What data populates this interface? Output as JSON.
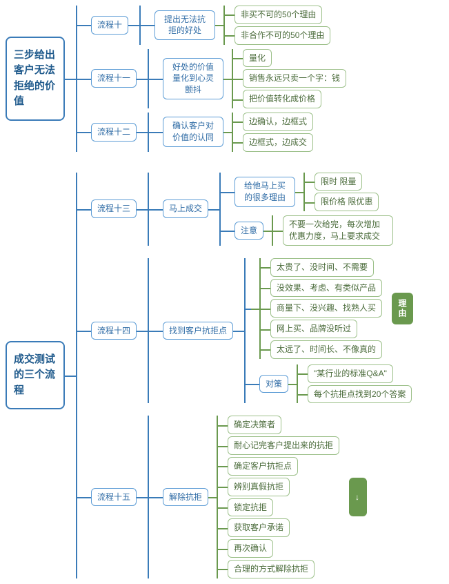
{
  "colors": {
    "root_border": "#3a7bb8",
    "root_text": "#1f5a8c",
    "mid_border": "#5b9bd5",
    "mid_text": "#2e6ba5",
    "leaf_border": "#9cc089",
    "leaf_text": "#4a6b3a",
    "green_fill": "#6a994e",
    "connector": "#3a7bb8",
    "connector_green": "#6a994e"
  },
  "section1": {
    "title": "三步给出客户无法拒绝的价值",
    "steps": [
      {
        "label": "流程十",
        "sub": "提出无法抗拒的好处",
        "leaves": [
          "非买不可的50个理由",
          "非合作不可的50个理由"
        ]
      },
      {
        "label": "流程十一",
        "sub": "好处的价值量化到心灵颤抖",
        "leaves": [
          "量化",
          "销售永远只卖一个字：钱",
          "把价值转化成价格"
        ]
      },
      {
        "label": "流程十二",
        "sub": "确认客户对价值的认同",
        "leaves": [
          "边确认，边框式",
          "边框式，边成交"
        ]
      }
    ]
  },
  "section2": {
    "title": "成交测试的三个流程",
    "step13": {
      "label": "流程十三",
      "sub": "马上成交",
      "group1": {
        "label": "给他马上买的很多理由",
        "leaves": [
          "限时 限量",
          "限价格 限优惠"
        ]
      },
      "group2": {
        "label": "注意",
        "leaf": "不要一次给完，每次增加优惠力度，马上要求成交"
      }
    },
    "step14": {
      "label": "流程十四",
      "sub": "找到客户抗拒点",
      "reasons": {
        "side": "理由",
        "leaves": [
          "太贵了、没时间、不需要",
          "没效果、考虑、有类似产品",
          "商量下、没兴趣、找熟人买",
          "网上买、品牌没听过",
          "太远了、时间长、不像真的"
        ]
      },
      "counter": {
        "label": "对策",
        "leaves": [
          "\"某行业的标准Q&A\"",
          "每个抗拒点找到20个答案"
        ]
      }
    },
    "step15": {
      "label": "流程十五",
      "sub": "解除抗拒",
      "side": "↓",
      "leaves": [
        "确定决策者",
        "耐心记完客户提出来的抗拒",
        "确定客户抗拒点",
        "辨别真假抗拒",
        "锁定抗拒",
        "获取客户承诺",
        "再次确认",
        "合理的方式解除抗拒"
      ]
    }
  }
}
